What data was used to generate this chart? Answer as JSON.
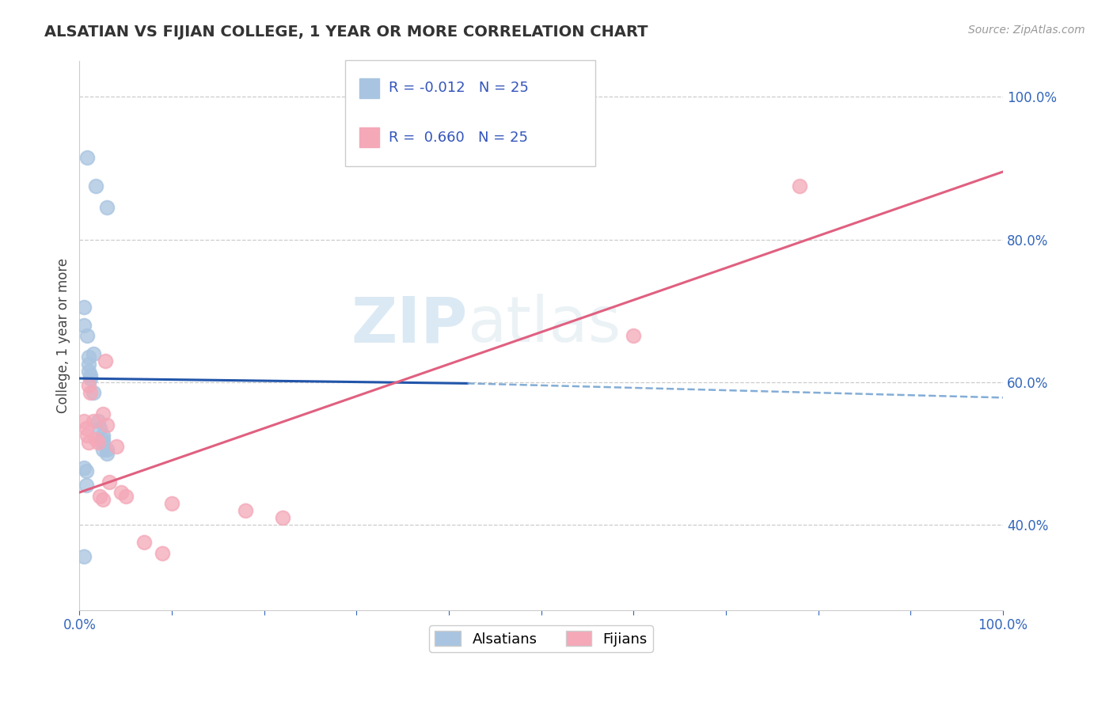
{
  "title": "ALSATIAN VS FIJIAN COLLEGE, 1 YEAR OR MORE CORRELATION CHART",
  "source": "Source: ZipAtlas.com",
  "xlabel": "",
  "ylabel": "College, 1 year or more",
  "xlim": [
    0.0,
    1.0
  ],
  "ylim": [
    0.28,
    1.05
  ],
  "xtick_labels": [
    "0.0%",
    "",
    "",
    "",
    "",
    "",
    "",
    "",
    "",
    "",
    "100.0%"
  ],
  "ytick_right_labels": [
    "40.0%",
    "60.0%",
    "80.0%",
    "100.0%"
  ],
  "ytick_right_values": [
    0.4,
    0.6,
    0.8,
    1.0
  ],
  "watermark_zip": "ZIP",
  "watermark_atlas": "atlas",
  "alsatian_R": "-0.012",
  "alsatian_N": "25",
  "fijian_R": "0.660",
  "fijian_N": "25",
  "alsatian_color": "#a8c4e0",
  "fijian_color": "#f4a8b8",
  "alsatian_line_solid_color": "#2255aa",
  "alsatian_line_dash_color": "#6699cc",
  "fijian_line_color": "#e06080",
  "grid_color": "#cccccc",
  "alsatian_points_x": [
    0.008,
    0.018,
    0.03,
    0.005,
    0.005,
    0.008,
    0.01,
    0.01,
    0.01,
    0.012,
    0.012,
    0.015,
    0.015,
    0.02,
    0.022,
    0.025,
    0.025,
    0.025,
    0.025,
    0.03,
    0.03,
    0.005,
    0.007,
    0.007,
    0.005
  ],
  "alsatian_points_y": [
    0.915,
    0.875,
    0.845,
    0.705,
    0.68,
    0.665,
    0.635,
    0.625,
    0.615,
    0.61,
    0.605,
    0.585,
    0.64,
    0.545,
    0.535,
    0.525,
    0.515,
    0.52,
    0.505,
    0.505,
    0.5,
    0.48,
    0.475,
    0.455,
    0.355
  ],
  "fijian_points_x": [
    0.005,
    0.007,
    0.008,
    0.01,
    0.01,
    0.012,
    0.015,
    0.018,
    0.02,
    0.022,
    0.025,
    0.025,
    0.028,
    0.03,
    0.032,
    0.04,
    0.045,
    0.05,
    0.07,
    0.09,
    0.1,
    0.18,
    0.22,
    0.6,
    0.78
  ],
  "fijian_points_y": [
    0.545,
    0.535,
    0.525,
    0.515,
    0.595,
    0.585,
    0.545,
    0.52,
    0.515,
    0.44,
    0.555,
    0.435,
    0.63,
    0.54,
    0.46,
    0.51,
    0.445,
    0.44,
    0.375,
    0.36,
    0.43,
    0.42,
    0.41,
    0.665,
    0.875
  ],
  "als_line_x_start": 0.0,
  "als_line_x_solid_end": 0.42,
  "als_line_x_end": 1.0,
  "als_line_y_start": 0.605,
  "als_line_y_solid_end": 0.598,
  "als_line_y_end": 0.578,
  "fij_line_x_start": 0.0,
  "fij_line_x_end": 1.0,
  "fij_line_y_start": 0.445,
  "fij_line_y_end": 0.895
}
